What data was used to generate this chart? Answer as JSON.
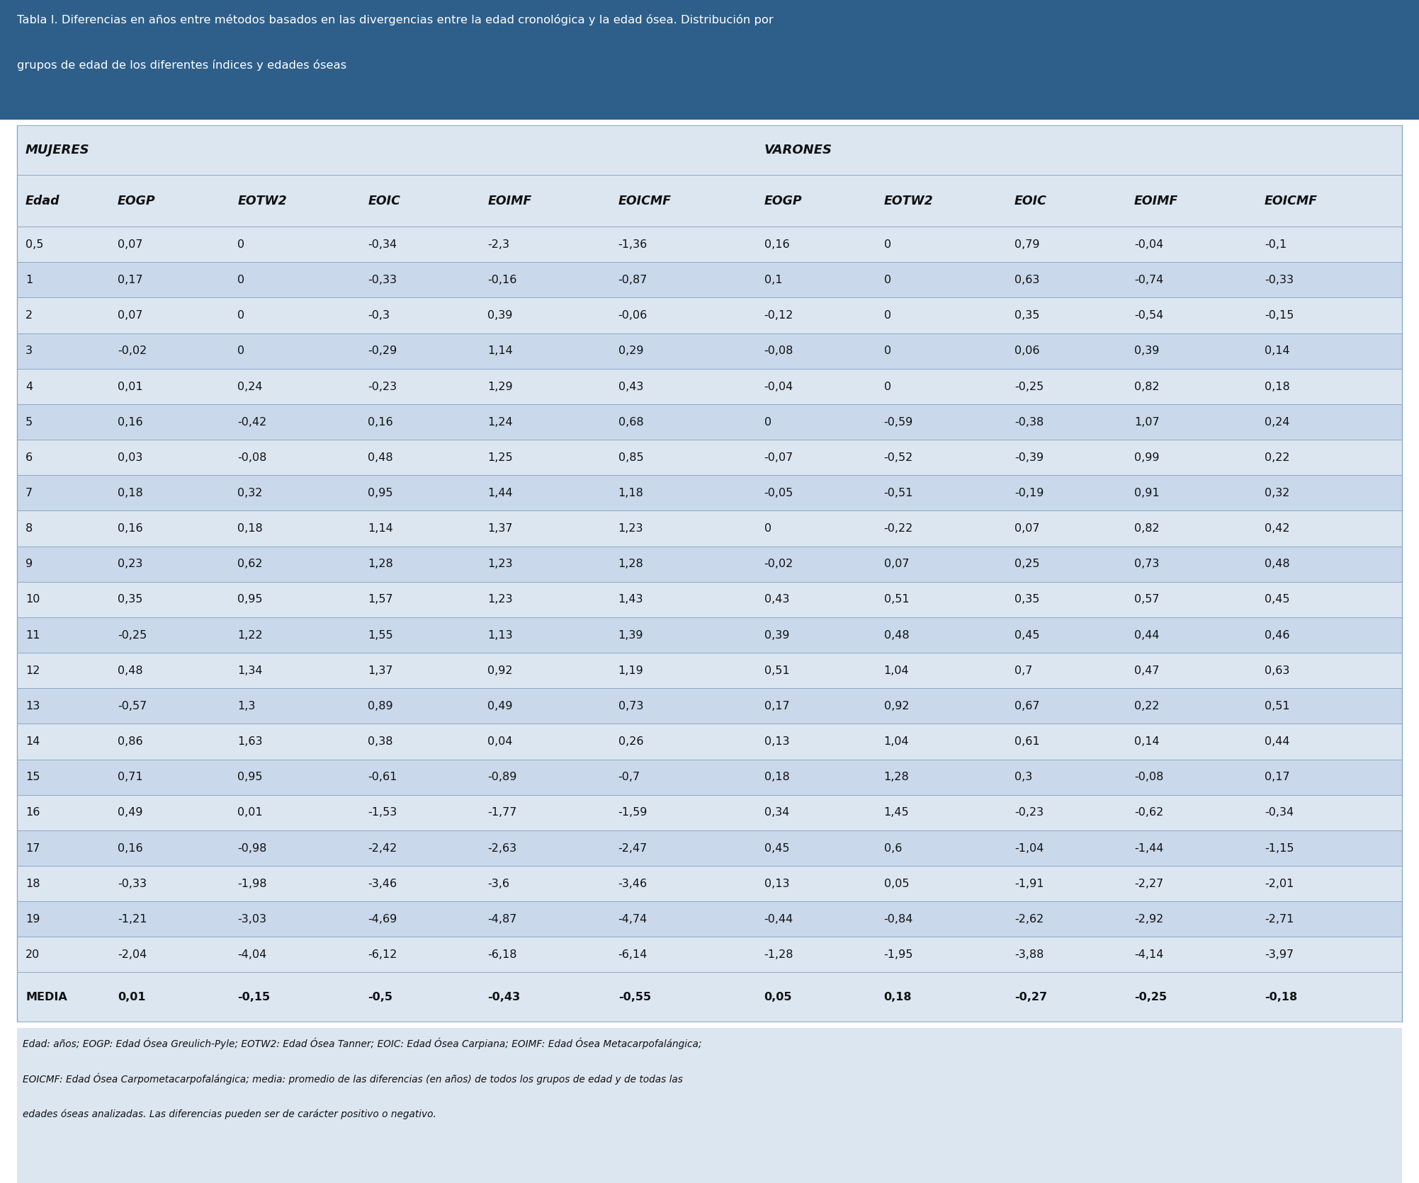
{
  "title_line1": "Tabla I. Diferencias en años entre métodos basados en las divergencias entre la edad cronológica y la edad ósea. Distribución por",
  "title_line2": "grupos de edad de los diferentes índices y edades óseas",
  "header_bg": "#2e5f8a",
  "table_bg_light": "#dce6f1",
  "table_bg_dark": "#c9d8ea",
  "title_text_color": "#ffffff",
  "table_text_color": "#111111",
  "footer_text_line1": "Edad: años; EOGP: Edad Ósea Greulich-Pyle; EOTW2: Edad Ósea Tanner; EOIC: Edad Ósea Carpiana; EOIMF: Edad Ósea Metacarpofalángica;",
  "footer_text_line2": "EOICMF: Edad Ósea Carpometacarpofalángica; media: promedio de las diferencias (en años) de todos los grupos de edad y de todas las",
  "footer_text_line3": "edades óseas analizadas. Las diferencias pueden ser de carácter positivo o negativo.",
  "group_headers": [
    "MUJERES",
    "VARONES"
  ],
  "col_headers": [
    "Edad",
    "EOGP",
    "EOTW2",
    "EOIC",
    "EOIMF",
    "EOICMF",
    "EOGP",
    "EOTW2",
    "EOIC",
    "EOIMF",
    "EOICMF"
  ],
  "rows": [
    [
      "0,5",
      "0,07",
      "0",
      "-0,34",
      "-2,3",
      "-1,36",
      "0,16",
      "0",
      "0,79",
      "-0,04",
      "-0,1"
    ],
    [
      "1",
      "0,17",
      "0",
      "-0,33",
      "-0,16",
      "-0,87",
      "0,1",
      "0",
      "0,63",
      "-0,74",
      "-0,33"
    ],
    [
      "2",
      "0,07",
      "0",
      "-0,3",
      "0,39",
      "-0,06",
      "-0,12",
      "0",
      "0,35",
      "-0,54",
      "-0,15"
    ],
    [
      "3",
      "-0,02",
      "0",
      "-0,29",
      "1,14",
      "0,29",
      "-0,08",
      "0",
      "0,06",
      "0,39",
      "0,14"
    ],
    [
      "4",
      "0,01",
      "0,24",
      "-0,23",
      "1,29",
      "0,43",
      "-0,04",
      "0",
      "-0,25",
      "0,82",
      "0,18"
    ],
    [
      "5",
      "0,16",
      "-0,42",
      "0,16",
      "1,24",
      "0,68",
      "0",
      "-0,59",
      "-0,38",
      "1,07",
      "0,24"
    ],
    [
      "6",
      "0,03",
      "-0,08",
      "0,48",
      "1,25",
      "0,85",
      "-0,07",
      "-0,52",
      "-0,39",
      "0,99",
      "0,22"
    ],
    [
      "7",
      "0,18",
      "0,32",
      "0,95",
      "1,44",
      "1,18",
      "-0,05",
      "-0,51",
      "-0,19",
      "0,91",
      "0,32"
    ],
    [
      "8",
      "0,16",
      "0,18",
      "1,14",
      "1,37",
      "1,23",
      "0",
      "-0,22",
      "0,07",
      "0,82",
      "0,42"
    ],
    [
      "9",
      "0,23",
      "0,62",
      "1,28",
      "1,23",
      "1,28",
      "-0,02",
      "0,07",
      "0,25",
      "0,73",
      "0,48"
    ],
    [
      "10",
      "0,35",
      "0,95",
      "1,57",
      "1,23",
      "1,43",
      "0,43",
      "0,51",
      "0,35",
      "0,57",
      "0,45"
    ],
    [
      "11",
      "-0,25",
      "1,22",
      "1,55",
      "1,13",
      "1,39",
      "0,39",
      "0,48",
      "0,45",
      "0,44",
      "0,46"
    ],
    [
      "12",
      "0,48",
      "1,34",
      "1,37",
      "0,92",
      "1,19",
      "0,51",
      "1,04",
      "0,7",
      "0,47",
      "0,63"
    ],
    [
      "13",
      "-0,57",
      "1,3",
      "0,89",
      "0,49",
      "0,73",
      "0,17",
      "0,92",
      "0,67",
      "0,22",
      "0,51"
    ],
    [
      "14",
      "0,86",
      "1,63",
      "0,38",
      "0,04",
      "0,26",
      "0,13",
      "1,04",
      "0,61",
      "0,14",
      "0,44"
    ],
    [
      "15",
      "0,71",
      "0,95",
      "-0,61",
      "-0,89",
      "-0,7",
      "0,18",
      "1,28",
      "0,3",
      "-0,08",
      "0,17"
    ],
    [
      "16",
      "0,49",
      "0,01",
      "-1,53",
      "-1,77",
      "-1,59",
      "0,34",
      "1,45",
      "-0,23",
      "-0,62",
      "-0,34"
    ],
    [
      "17",
      "0,16",
      "-0,98",
      "-2,42",
      "-2,63",
      "-2,47",
      "0,45",
      "0,6",
      "-1,04",
      "-1,44",
      "-1,15"
    ],
    [
      "18",
      "-0,33",
      "-1,98",
      "-3,46",
      "-3,6",
      "-3,46",
      "0,13",
      "0,05",
      "-1,91",
      "-2,27",
      "-2,01"
    ],
    [
      "19",
      "-1,21",
      "-3,03",
      "-4,69",
      "-4,87",
      "-4,74",
      "-0,44",
      "-0,84",
      "-2,62",
      "-2,92",
      "-2,71"
    ],
    [
      "20",
      "-2,04",
      "-4,04",
      "-6,12",
      "-6,18",
      "-6,14",
      "-1,28",
      "-1,95",
      "-3,88",
      "-4,14",
      "-3,97"
    ]
  ],
  "media_row": [
    "MEDIA",
    "0,01",
    "-0,15",
    "-0,5",
    "-0,43",
    "-0,55",
    "0,05",
    "0,18",
    "-0,27",
    "-0,25",
    "-0,18"
  ]
}
